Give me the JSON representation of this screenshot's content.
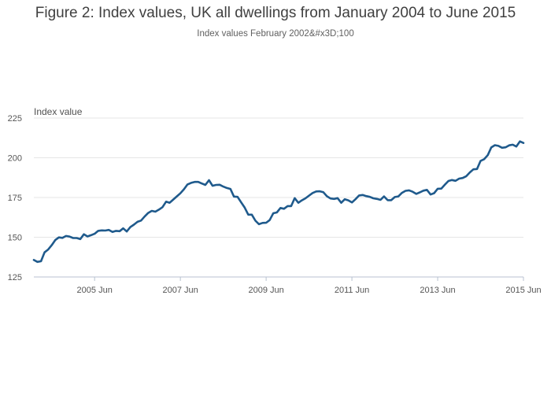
{
  "chart_data": {
    "type": "line",
    "title": "Figure 2: Index values, UK all dwellings from January 2004 to June 2015",
    "subtitle": "Index values February 2002&#x3D;100",
    "ylabel": "Index value",
    "xlabel": "",
    "ylim": [
      125,
      225
    ],
    "yticks": [
      125,
      150,
      175,
      200,
      225
    ],
    "xlim": [
      "2004-01",
      "2015-06"
    ],
    "xticks": [
      "2005-06",
      "2007-06",
      "2009-06",
      "2011-06",
      "2013-06",
      "2015-06"
    ],
    "xtick_labels": [
      "2005 Jun",
      "2007 Jun",
      "2009 Jun",
      "2011 Jun",
      "2013 Jun",
      "2015 Jun"
    ],
    "grid": true,
    "line_color": "#1f5a8c",
    "series": [
      {
        "name": "",
        "x": [
          "2004-01",
          "2004-02",
          "2004-03",
          "2004-04",
          "2004-05",
          "2004-06",
          "2004-07",
          "2004-08",
          "2004-09",
          "2004-10",
          "2004-11",
          "2004-12",
          "2005-01",
          "2005-02",
          "2005-03",
          "2005-04",
          "2005-05",
          "2005-06",
          "2005-07",
          "2005-08",
          "2005-09",
          "2005-10",
          "2005-11",
          "2005-12",
          "2006-01",
          "2006-02",
          "2006-03",
          "2006-04",
          "2006-05",
          "2006-06",
          "2006-07",
          "2006-08",
          "2006-09",
          "2006-10",
          "2006-11",
          "2006-12",
          "2007-01",
          "2007-02",
          "2007-03",
          "2007-04",
          "2007-05",
          "2007-06",
          "2007-07",
          "2007-08",
          "2007-09",
          "2007-10",
          "2007-11",
          "2007-12",
          "2008-01",
          "2008-02",
          "2008-03",
          "2008-04",
          "2008-05",
          "2008-06",
          "2008-07",
          "2008-08",
          "2008-09",
          "2008-10",
          "2008-11",
          "2008-12",
          "2009-01",
          "2009-02",
          "2009-03",
          "2009-04",
          "2009-05",
          "2009-06",
          "2009-07",
          "2009-08",
          "2009-09",
          "2009-10",
          "2009-11",
          "2009-12",
          "2010-01",
          "2010-02",
          "2010-03",
          "2010-04",
          "2010-05",
          "2010-06",
          "2010-07",
          "2010-08",
          "2010-09",
          "2010-10",
          "2010-11",
          "2010-12",
          "2011-01",
          "2011-02",
          "2011-03",
          "2011-04",
          "2011-05",
          "2011-06",
          "2011-07",
          "2011-08",
          "2011-09",
          "2011-10",
          "2011-11",
          "2011-12",
          "2012-01",
          "2012-02",
          "2012-03",
          "2012-04",
          "2012-05",
          "2012-06",
          "2012-07",
          "2012-08",
          "2012-09",
          "2012-10",
          "2012-11",
          "2012-12",
          "2013-01",
          "2013-02",
          "2013-03",
          "2013-04",
          "2013-05",
          "2013-06",
          "2013-07",
          "2013-08",
          "2013-09",
          "2013-10",
          "2013-11",
          "2013-12",
          "2014-01",
          "2014-02",
          "2014-03",
          "2014-04",
          "2014-05",
          "2014-06",
          "2014-07",
          "2014-08",
          "2014-09",
          "2014-10",
          "2014-11",
          "2014-12",
          "2015-01",
          "2015-02",
          "2015-03",
          "2015-04",
          "2015-05",
          "2015-06"
        ],
        "values": [
          135.7,
          134.5,
          134.9,
          140.5,
          142.3,
          145.0,
          148.2,
          149.9,
          149.6,
          150.8,
          150.4,
          149.5,
          149.5,
          148.8,
          151.9,
          150.5,
          151.3,
          152.2,
          154.0,
          154.3,
          154.2,
          154.6,
          153.3,
          154.0,
          153.8,
          155.6,
          153.6,
          156.4,
          157.9,
          159.7,
          160.5,
          163.0,
          165.3,
          166.6,
          166.1,
          167.4,
          168.9,
          172.4,
          171.7,
          173.7,
          175.7,
          177.6,
          180.2,
          183.2,
          184.2,
          184.8,
          184.8,
          183.8,
          182.9,
          185.9,
          182.4,
          182.9,
          183.0,
          181.9,
          181.0,
          180.4,
          175.6,
          175.4,
          172.0,
          168.6,
          164.2,
          164.2,
          160.4,
          158.2,
          159.0,
          159.1,
          160.8,
          165.1,
          165.6,
          168.4,
          167.9,
          169.6,
          169.6,
          174.6,
          171.7,
          173.2,
          174.5,
          176.2,
          177.8,
          178.8,
          178.9,
          178.3,
          175.8,
          174.4,
          174.1,
          174.6,
          171.7,
          173.9,
          173.2,
          171.9,
          173.9,
          176.3,
          176.6,
          175.9,
          175.4,
          174.5,
          174.1,
          173.5,
          175.7,
          173.3,
          173.3,
          175.3,
          175.7,
          177.9,
          179.2,
          179.5,
          178.6,
          177.3,
          178.2,
          179.3,
          179.8,
          176.9,
          177.7,
          180.5,
          180.6,
          183.0,
          185.4,
          186.0,
          185.5,
          186.9,
          187.3,
          188.4,
          190.8,
          192.7,
          192.9,
          198.0,
          199.1,
          201.6,
          206.5,
          207.9,
          207.5,
          206.3,
          206.6,
          207.8,
          208.2,
          207.1,
          210.3,
          209.3
        ]
      }
    ]
  }
}
